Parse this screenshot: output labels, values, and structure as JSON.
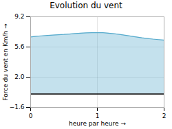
{
  "chart_data": {
    "type": "area",
    "title": "Evolution du vent",
    "xlabel": "heure par heure",
    "ylabel": "Force du vent en Km/h",
    "x": [
      0.0,
      0.083,
      0.167,
      0.25,
      0.333,
      0.417,
      0.5,
      0.583,
      0.667,
      0.75,
      0.833,
      0.917,
      1.0,
      1.083,
      1.167,
      1.25,
      1.333,
      1.417,
      1.5,
      1.583,
      1.667,
      1.75,
      1.833,
      1.917,
      2.0
    ],
    "values": [
      6.8,
      6.88,
      6.93,
      6.98,
      7.02,
      7.07,
      7.1,
      7.15,
      7.2,
      7.25,
      7.28,
      7.3,
      7.32,
      7.3,
      7.25,
      7.18,
      7.1,
      7.0,
      6.9,
      6.8,
      6.7,
      6.62,
      6.54,
      6.48,
      6.42
    ],
    "color": "#55aacc",
    "xlim": [
      0,
      2
    ],
    "xticks": [
      0,
      1,
      2
    ],
    "ylim": [
      -1.6,
      9.2
    ],
    "yticks": [
      -1.6,
      {
        "value": 2.0,
        "label": "2.0"
      },
      5.6,
      9.2
    ],
    "grid": true
  }
}
